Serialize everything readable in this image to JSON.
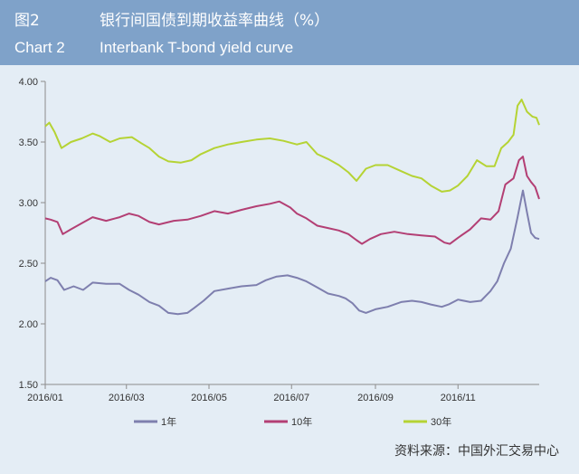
{
  "header": {
    "zh_number": "图2",
    "zh_title": "银行间国债到期收益率曲线（%）",
    "en_number": "Chart 2",
    "en_title": "Interbank T-bond yield curve"
  },
  "source": "资料来源：中国外汇交易中心",
  "chart_data": {
    "type": "line",
    "title": "银行间国债到期收益率曲线（%）",
    "xlabel": "",
    "ylabel": "",
    "ylim": [
      1.5,
      4.0
    ],
    "yticks": [
      "4.00",
      "3.50",
      "3.00",
      "2.50",
      "2.00",
      "1.50"
    ],
    "xlim": [
      "2016-01-01",
      "2016-12-31"
    ],
    "xticks": [
      {
        "label": "2016/01",
        "date": "2016-01-01"
      },
      {
        "label": "2016/03",
        "date": "2016-03-01"
      },
      {
        "label": "2016/05",
        "date": "2016-05-01"
      },
      {
        "label": "2016/07",
        "date": "2016-07-01"
      },
      {
        "label": "2016/09",
        "date": "2016-09-01"
      },
      {
        "label": "2016/11",
        "date": "2016-11-01"
      }
    ],
    "grid": false,
    "legend_position": "bottom",
    "series": [
      {
        "name": "1年",
        "color": "#7e7fae",
        "points": [
          [
            "2016-01-01",
            2.35
          ],
          [
            "2016-01-05",
            2.38
          ],
          [
            "2016-01-10",
            2.36
          ],
          [
            "2016-01-15",
            2.28
          ],
          [
            "2016-01-22",
            2.31
          ],
          [
            "2016-01-29",
            2.28
          ],
          [
            "2016-02-05",
            2.34
          ],
          [
            "2016-02-15",
            2.33
          ],
          [
            "2016-02-25",
            2.33
          ],
          [
            "2016-03-03",
            2.28
          ],
          [
            "2016-03-10",
            2.24
          ],
          [
            "2016-03-18",
            2.18
          ],
          [
            "2016-03-25",
            2.15
          ],
          [
            "2016-04-01",
            2.09
          ],
          [
            "2016-04-08",
            2.08
          ],
          [
            "2016-04-15",
            2.09
          ],
          [
            "2016-04-20",
            2.13
          ],
          [
            "2016-04-27",
            2.19
          ],
          [
            "2016-05-05",
            2.27
          ],
          [
            "2016-05-15",
            2.29
          ],
          [
            "2016-05-25",
            2.31
          ],
          [
            "2016-06-05",
            2.32
          ],
          [
            "2016-06-12",
            2.36
          ],
          [
            "2016-06-20",
            2.39
          ],
          [
            "2016-06-28",
            2.4
          ],
          [
            "2016-07-05",
            2.38
          ],
          [
            "2016-07-12",
            2.35
          ],
          [
            "2016-07-20",
            2.3
          ],
          [
            "2016-07-28",
            2.25
          ],
          [
            "2016-08-05",
            2.23
          ],
          [
            "2016-08-10",
            2.21
          ],
          [
            "2016-08-15",
            2.17
          ],
          [
            "2016-08-20",
            2.11
          ],
          [
            "2016-08-25",
            2.09
          ],
          [
            "2016-09-01",
            2.12
          ],
          [
            "2016-09-10",
            2.14
          ],
          [
            "2016-09-20",
            2.18
          ],
          [
            "2016-09-28",
            2.19
          ],
          [
            "2016-10-05",
            2.18
          ],
          [
            "2016-10-12",
            2.16
          ],
          [
            "2016-10-20",
            2.14
          ],
          [
            "2016-10-25",
            2.16
          ],
          [
            "2016-11-01",
            2.2
          ],
          [
            "2016-11-10",
            2.18
          ],
          [
            "2016-11-18",
            2.19
          ],
          [
            "2016-11-25",
            2.27
          ],
          [
            "2016-11-30",
            2.35
          ],
          [
            "2016-12-05",
            2.5
          ],
          [
            "2016-12-10",
            2.62
          ],
          [
            "2016-12-15",
            2.88
          ],
          [
            "2016-12-19",
            3.1
          ],
          [
            "2016-12-22",
            2.92
          ],
          [
            "2016-12-25",
            2.75
          ],
          [
            "2016-12-28",
            2.71
          ],
          [
            "2016-12-31",
            2.7
          ]
        ]
      },
      {
        "name": "10年",
        "color": "#b33f74",
        "points": [
          [
            "2016-01-01",
            2.87
          ],
          [
            "2016-01-05",
            2.86
          ],
          [
            "2016-01-10",
            2.84
          ],
          [
            "2016-01-14",
            2.74
          ],
          [
            "2016-01-20",
            2.78
          ],
          [
            "2016-01-28",
            2.83
          ],
          [
            "2016-02-05",
            2.88
          ],
          [
            "2016-02-15",
            2.85
          ],
          [
            "2016-02-25",
            2.88
          ],
          [
            "2016-03-03",
            2.91
          ],
          [
            "2016-03-10",
            2.89
          ],
          [
            "2016-03-18",
            2.84
          ],
          [
            "2016-03-25",
            2.82
          ],
          [
            "2016-04-05",
            2.85
          ],
          [
            "2016-04-15",
            2.86
          ],
          [
            "2016-04-25",
            2.89
          ],
          [
            "2016-05-05",
            2.93
          ],
          [
            "2016-05-15",
            2.91
          ],
          [
            "2016-05-25",
            2.94
          ],
          [
            "2016-06-05",
            2.97
          ],
          [
            "2016-06-15",
            2.99
          ],
          [
            "2016-06-22",
            3.01
          ],
          [
            "2016-06-30",
            2.96
          ],
          [
            "2016-07-05",
            2.91
          ],
          [
            "2016-07-12",
            2.87
          ],
          [
            "2016-07-20",
            2.81
          ],
          [
            "2016-07-28",
            2.79
          ],
          [
            "2016-08-05",
            2.77
          ],
          [
            "2016-08-12",
            2.74
          ],
          [
            "2016-08-18",
            2.69
          ],
          [
            "2016-08-22",
            2.66
          ],
          [
            "2016-08-28",
            2.7
          ],
          [
            "2016-09-05",
            2.74
          ],
          [
            "2016-09-15",
            2.76
          ],
          [
            "2016-09-25",
            2.74
          ],
          [
            "2016-10-05",
            2.73
          ],
          [
            "2016-10-15",
            2.72
          ],
          [
            "2016-10-22",
            2.67
          ],
          [
            "2016-10-26",
            2.66
          ],
          [
            "2016-11-01",
            2.71
          ],
          [
            "2016-11-10",
            2.78
          ],
          [
            "2016-11-18",
            2.87
          ],
          [
            "2016-11-25",
            2.86
          ],
          [
            "2016-12-01",
            2.93
          ],
          [
            "2016-12-06",
            3.15
          ],
          [
            "2016-12-12",
            3.2
          ],
          [
            "2016-12-16",
            3.35
          ],
          [
            "2016-12-19",
            3.38
          ],
          [
            "2016-12-22",
            3.22
          ],
          [
            "2016-12-25",
            3.17
          ],
          [
            "2016-12-28",
            3.13
          ],
          [
            "2016-12-31",
            3.03
          ]
        ]
      },
      {
        "name": "30年",
        "color": "#b5d334",
        "points": [
          [
            "2016-01-01",
            3.63
          ],
          [
            "2016-01-04",
            3.66
          ],
          [
            "2016-01-08",
            3.58
          ],
          [
            "2016-01-13",
            3.45
          ],
          [
            "2016-01-20",
            3.5
          ],
          [
            "2016-01-28",
            3.53
          ],
          [
            "2016-02-05",
            3.57
          ],
          [
            "2016-02-10",
            3.55
          ],
          [
            "2016-02-18",
            3.5
          ],
          [
            "2016-02-25",
            3.53
          ],
          [
            "2016-03-05",
            3.54
          ],
          [
            "2016-03-12",
            3.49
          ],
          [
            "2016-03-18",
            3.45
          ],
          [
            "2016-03-25",
            3.38
          ],
          [
            "2016-04-01",
            3.34
          ],
          [
            "2016-04-10",
            3.33
          ],
          [
            "2016-04-18",
            3.35
          ],
          [
            "2016-04-25",
            3.4
          ],
          [
            "2016-05-05",
            3.45
          ],
          [
            "2016-05-15",
            3.48
          ],
          [
            "2016-05-25",
            3.5
          ],
          [
            "2016-06-05",
            3.52
          ],
          [
            "2016-06-15",
            3.53
          ],
          [
            "2016-06-25",
            3.51
          ],
          [
            "2016-07-05",
            3.48
          ],
          [
            "2016-07-12",
            3.5
          ],
          [
            "2016-07-20",
            3.4
          ],
          [
            "2016-07-28",
            3.36
          ],
          [
            "2016-08-05",
            3.31
          ],
          [
            "2016-08-12",
            3.25
          ],
          [
            "2016-08-18",
            3.18
          ],
          [
            "2016-08-25",
            3.28
          ],
          [
            "2016-09-01",
            3.31
          ],
          [
            "2016-09-10",
            3.31
          ],
          [
            "2016-09-20",
            3.26
          ],
          [
            "2016-09-28",
            3.22
          ],
          [
            "2016-10-05",
            3.2
          ],
          [
            "2016-10-12",
            3.14
          ],
          [
            "2016-10-20",
            3.09
          ],
          [
            "2016-10-26",
            3.1
          ],
          [
            "2016-11-01",
            3.14
          ],
          [
            "2016-11-08",
            3.22
          ],
          [
            "2016-11-15",
            3.35
          ],
          [
            "2016-11-22",
            3.3
          ],
          [
            "2016-11-28",
            3.3
          ],
          [
            "2016-12-03",
            3.45
          ],
          [
            "2016-12-08",
            3.5
          ],
          [
            "2016-12-12",
            3.56
          ],
          [
            "2016-12-15",
            3.8
          ],
          [
            "2016-12-18",
            3.85
          ],
          [
            "2016-12-22",
            3.75
          ],
          [
            "2016-12-26",
            3.71
          ],
          [
            "2016-12-29",
            3.7
          ],
          [
            "2016-12-31",
            3.64
          ]
        ]
      }
    ]
  }
}
